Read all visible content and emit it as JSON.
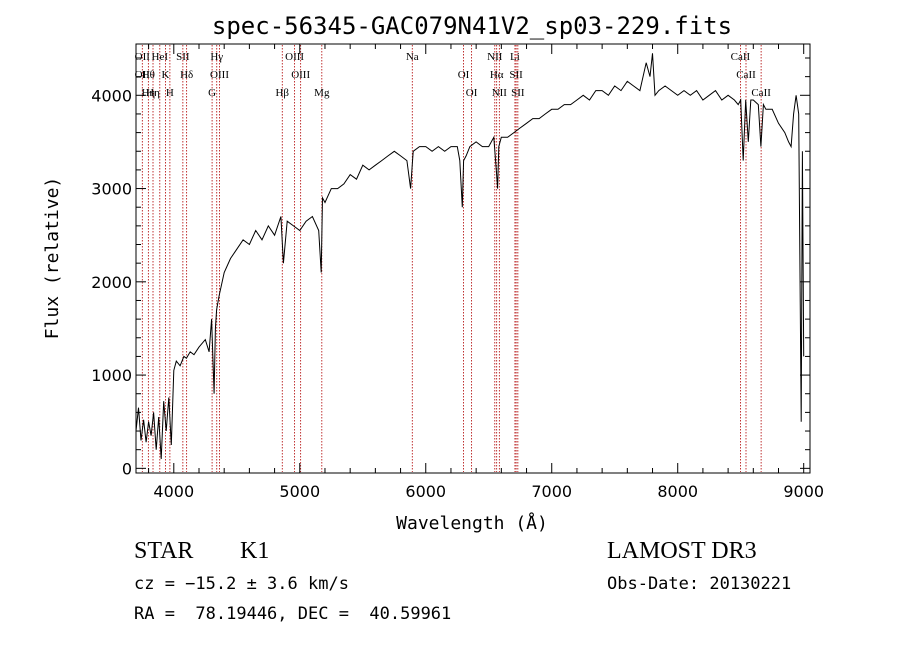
{
  "chart_data": {
    "type": "line",
    "title": "spec-56345-GAC079N41V2_sp03-229.fits",
    "xlabel": "Wavelength (Å)",
    "ylabel": "Flux (relative)",
    "xlim": [
      3700,
      9050
    ],
    "ylim": [
      -50,
      4550
    ],
    "xticks": [
      4000,
      5000,
      6000,
      7000,
      8000,
      9000
    ],
    "xtick_labels": [
      "4000",
      "5000",
      "6000",
      "7000",
      "8000",
      "9000"
    ],
    "yticks": [
      0,
      1000,
      2000,
      3000,
      4000
    ],
    "ytick_labels": [
      "0",
      "1000",
      "2000",
      "3000",
      "4000"
    ],
    "grid": false,
    "legend": "none",
    "series": [
      {
        "name": "spectrum",
        "x": [
          3700,
          3720,
          3740,
          3760,
          3780,
          3800,
          3820,
          3840,
          3860,
          3880,
          3900,
          3920,
          3940,
          3960,
          3980,
          4000,
          4020,
          4050,
          4080,
          4100,
          4130,
          4160,
          4200,
          4250,
          4280,
          4300,
          4320,
          4330,
          4340,
          4360,
          4400,
          4450,
          4500,
          4550,
          4600,
          4650,
          4700,
          4750,
          4800,
          4850,
          4870,
          4900,
          4950,
          5000,
          5050,
          5100,
          5150,
          5170,
          5180,
          5200,
          5250,
          5300,
          5350,
          5400,
          5450,
          5500,
          5550,
          5600,
          5650,
          5700,
          5750,
          5800,
          5850,
          5880,
          5890,
          5900,
          5950,
          6000,
          6050,
          6100,
          6150,
          6200,
          6250,
          6270,
          6290,
          6300,
          6320,
          6350,
          6400,
          6450,
          6500,
          6540,
          6560,
          6570,
          6580,
          6600,
          6650,
          6700,
          6750,
          6800,
          6850,
          6900,
          6950,
          7000,
          7050,
          7100,
          7150,
          7200,
          7250,
          7300,
          7350,
          7400,
          7450,
          7500,
          7550,
          7600,
          7650,
          7700,
          7750,
          7780,
          7800,
          7820,
          7850,
          7900,
          7950,
          8000,
          8050,
          8100,
          8150,
          8200,
          8250,
          8300,
          8350,
          8400,
          8450,
          8480,
          8500,
          8520,
          8540,
          8560,
          8580,
          8600,
          8640,
          8660,
          8680,
          8700,
          8750,
          8800,
          8850,
          8880,
          8900,
          8920,
          8940,
          8960,
          8980,
          8990,
          9000
        ],
        "values": [
          400,
          650,
          300,
          520,
          280,
          500,
          350,
          600,
          200,
          550,
          100,
          720,
          400,
          760,
          250,
          1050,
          1150,
          1100,
          1200,
          1180,
          1250,
          1220,
          1300,
          1380,
          1250,
          1600,
          800,
          1500,
          1700,
          1850,
          2100,
          2250,
          2350,
          2450,
          2400,
          2550,
          2450,
          2600,
          2500,
          2700,
          2200,
          2650,
          2600,
          2550,
          2650,
          2700,
          2550,
          2100,
          2900,
          2850,
          3000,
          3000,
          3050,
          3150,
          3100,
          3250,
          3200,
          3250,
          3300,
          3350,
          3400,
          3350,
          3300,
          3000,
          3200,
          3400,
          3450,
          3450,
          3400,
          3450,
          3400,
          3450,
          3450,
          3300,
          2800,
          3300,
          3350,
          3450,
          3500,
          3450,
          3450,
          3550,
          3200,
          3000,
          3450,
          3550,
          3550,
          3600,
          3650,
          3700,
          3750,
          3750,
          3800,
          3850,
          3850,
          3900,
          3900,
          3950,
          4000,
          3950,
          4050,
          4050,
          4000,
          4100,
          4050,
          4150,
          4100,
          4050,
          4350,
          4200,
          4450,
          4000,
          4050,
          4100,
          4050,
          4000,
          4050,
          4000,
          4050,
          3950,
          4000,
          4050,
          3950,
          4000,
          3950,
          3900,
          3950,
          3300,
          3950,
          3500,
          3950,
          3950,
          3900,
          3450,
          3900,
          3850,
          3850,
          3700,
          3600,
          3500,
          3450,
          3800,
          4000,
          3800,
          500,
          3400,
          1200
        ]
      }
    ],
    "line_markers": [
      {
        "wavelength": 3750,
        "labels": [
          "OII",
          "OII"
        ]
      },
      {
        "wavelength": 3798,
        "labels": [
          "Hθ",
          "Hη"
        ]
      },
      {
        "wavelength": 3835,
        "labels": [
          "Hη"
        ]
      },
      {
        "wavelength": 3889,
        "labels": [
          "HeI"
        ]
      },
      {
        "wavelength": 3934,
        "labels": [
          "K"
        ]
      },
      {
        "wavelength": 3969,
        "labels": [
          "H"
        ]
      },
      {
        "wavelength": 4072,
        "labels": [
          "SII"
        ]
      },
      {
        "wavelength": 4102,
        "labels": [
          "Hδ"
        ]
      },
      {
        "wavelength": 4304,
        "labels": [
          "G"
        ]
      },
      {
        "wavelength": 4341,
        "labels": [
          "Hγ"
        ]
      },
      {
        "wavelength": 4363,
        "labels": [
          "OIII"
        ]
      },
      {
        "wavelength": 4861,
        "labels": [
          "Hβ"
        ]
      },
      {
        "wavelength": 4959,
        "labels": [
          "OIII"
        ]
      },
      {
        "wavelength": 5007,
        "labels": [
          "OIII"
        ]
      },
      {
        "wavelength": 5175,
        "labels": [
          "Mg"
        ]
      },
      {
        "wavelength": 5893,
        "labels": [
          "Na"
        ]
      },
      {
        "wavelength": 6300,
        "labels": [
          "OI"
        ]
      },
      {
        "wavelength": 6364,
        "labels": [
          "OI"
        ]
      },
      {
        "wavelength": 6548,
        "labels": [
          "NII"
        ]
      },
      {
        "wavelength": 6563,
        "labels": [
          "Hα"
        ]
      },
      {
        "wavelength": 6584,
        "labels": [
          "NII"
        ]
      },
      {
        "wavelength": 6708,
        "labels": [
          "Li"
        ]
      },
      {
        "wavelength": 6717,
        "labels": [
          "SII"
        ]
      },
      {
        "wavelength": 6731,
        "labels": [
          "SII"
        ]
      },
      {
        "wavelength": 8498,
        "labels": [
          "CaII"
        ]
      },
      {
        "wavelength": 8542,
        "labels": [
          "CaII"
        ]
      },
      {
        "wavelength": 8662,
        "labels": [
          "CaII"
        ]
      }
    ]
  },
  "footer": {
    "object_class": "STAR",
    "subclass": "K1",
    "survey": "LAMOST DR3",
    "redshift": "cz = −15.2 ± 3.6 km/s",
    "obs_date": "Obs-Date: 20130221",
    "coords": "RA =  78.19446, DEC =  40.59961"
  },
  "colors": {
    "spectrum": "#000000",
    "line_marker": "#b00000",
    "axes": "#000000"
  }
}
